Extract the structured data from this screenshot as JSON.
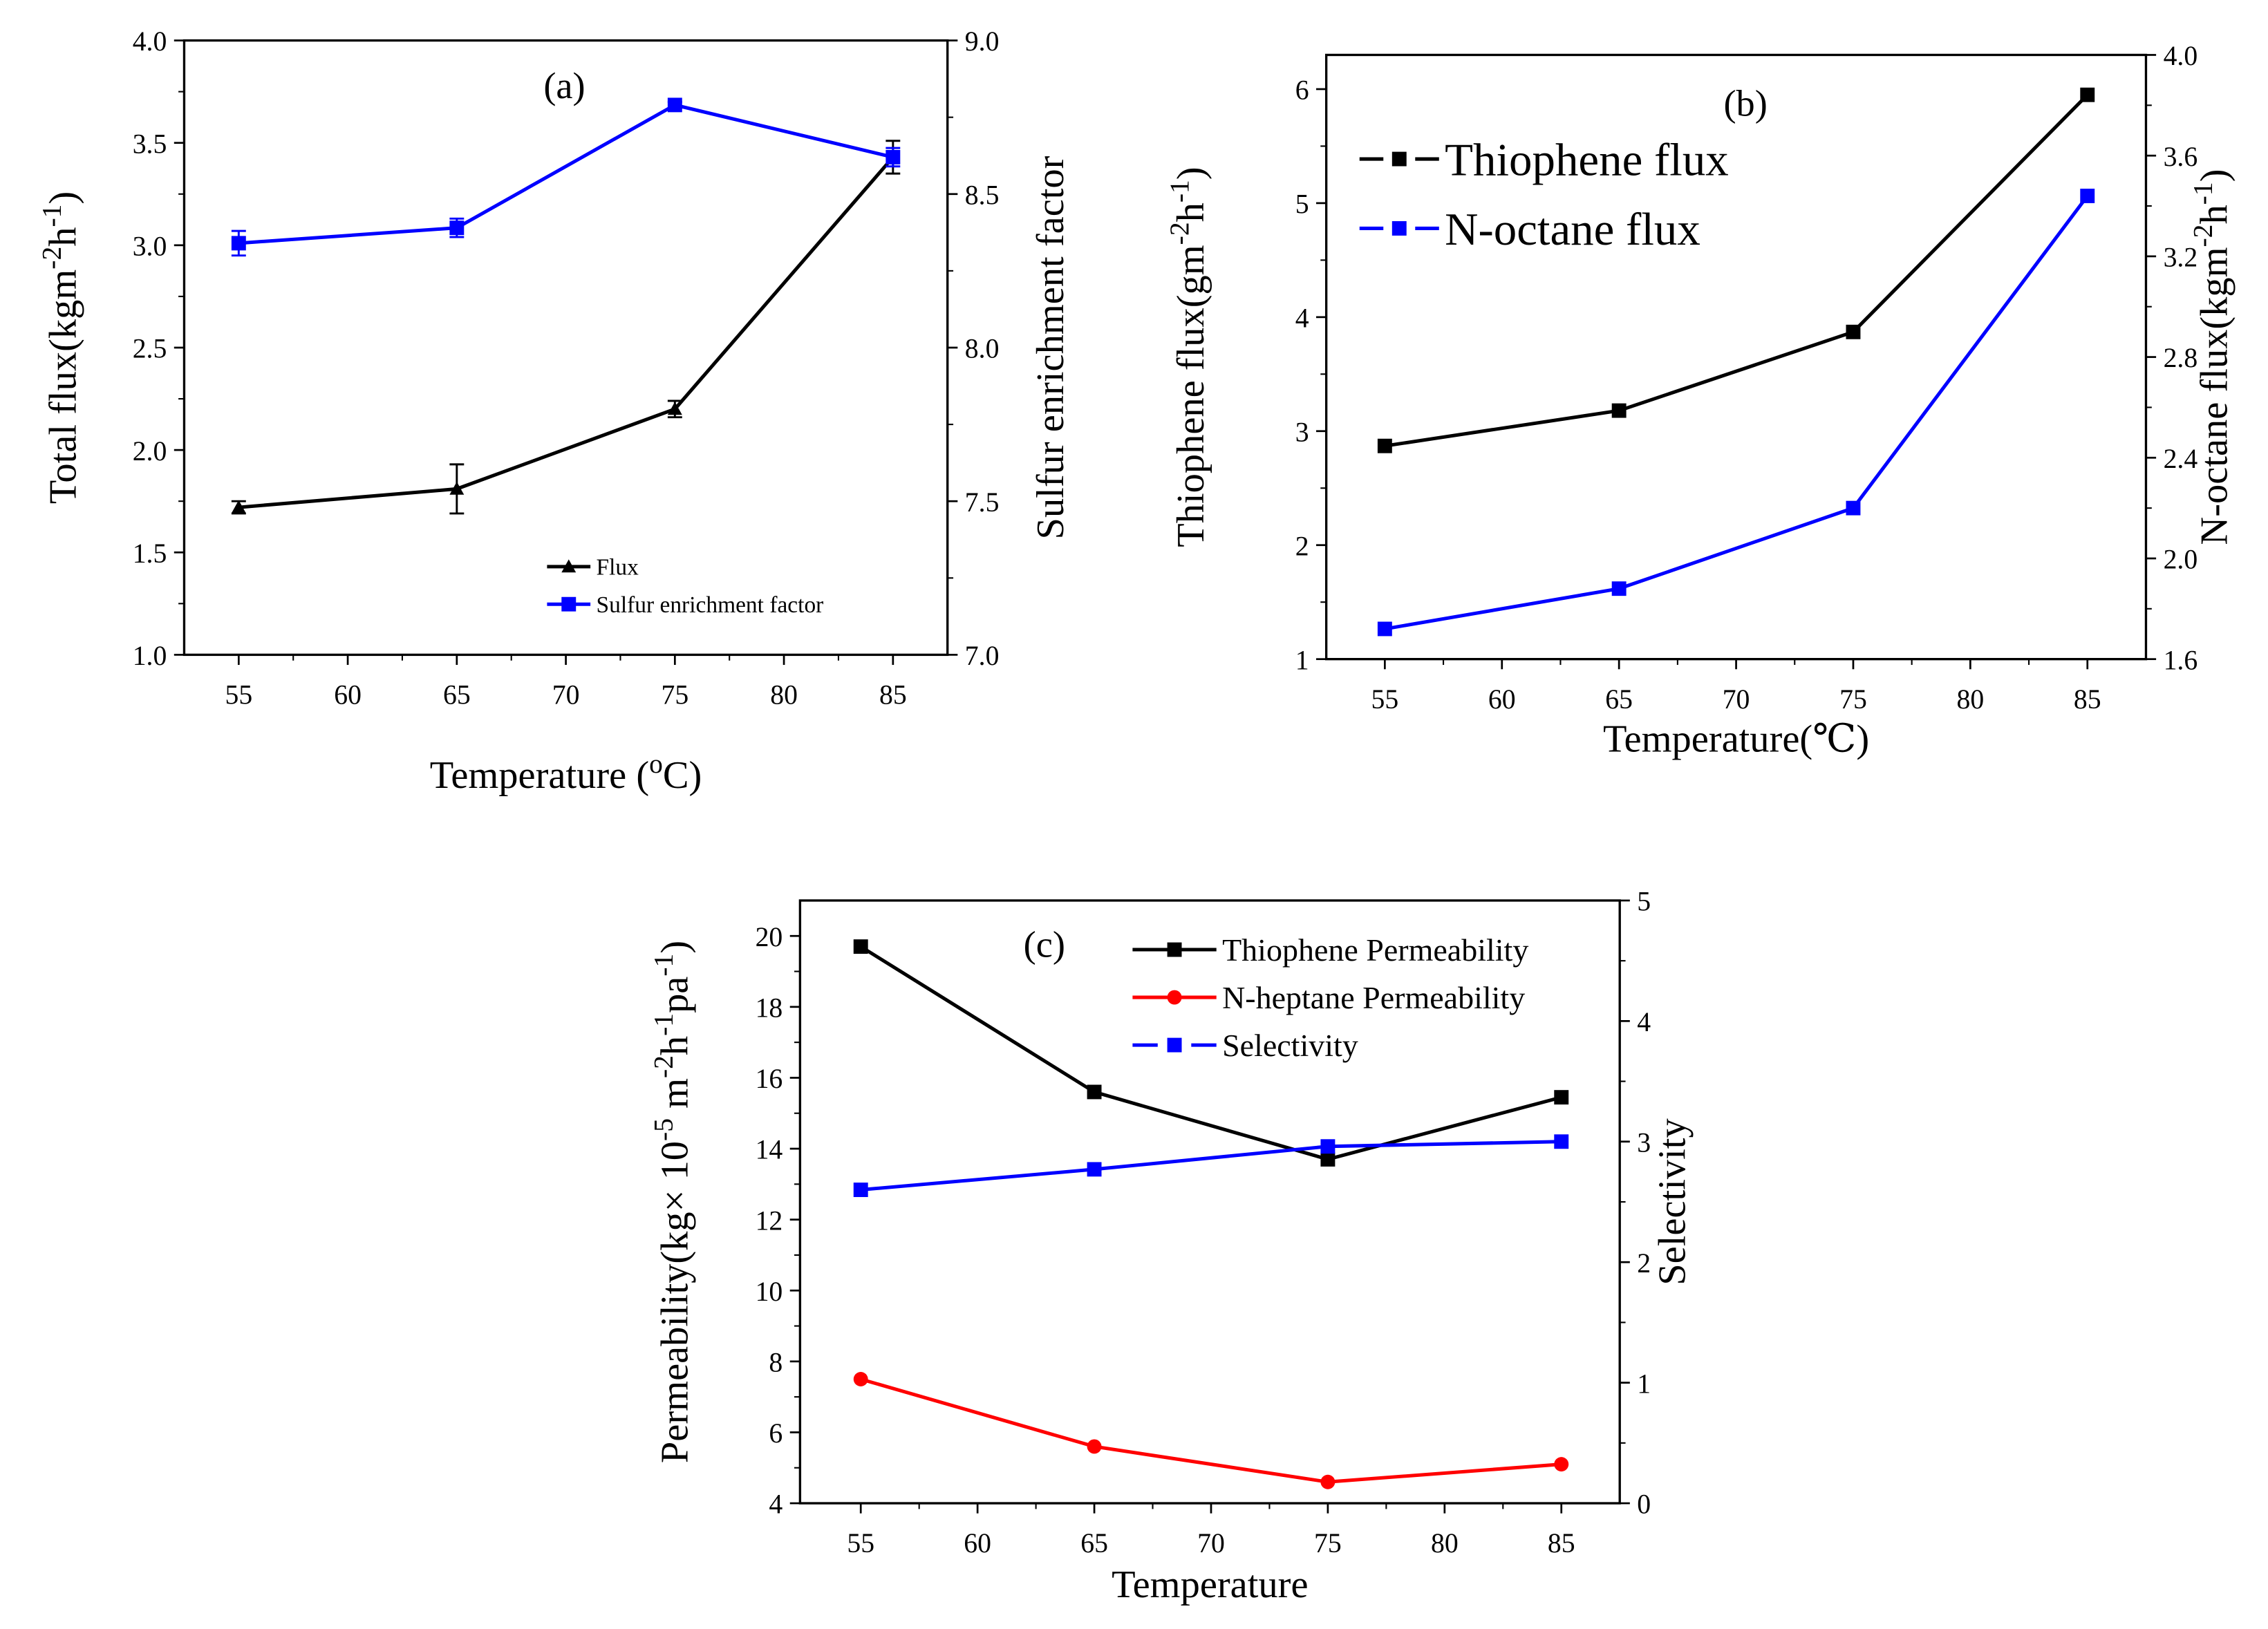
{
  "chart_data": [
    {
      "panel": "(a)",
      "type": "line",
      "xlabel": [
        {
          "t": "Temperature ("
        },
        {
          "t": "o",
          "sup": true
        },
        {
          "t": "C)"
        }
      ],
      "ylabel": [
        {
          "t": "Total flux(kgm"
        },
        {
          "t": "-2",
          "sup": true
        },
        {
          "t": "h"
        },
        {
          "t": "-1",
          "sup": true
        },
        {
          "t": ")"
        }
      ],
      "y2label": [
        {
          "t": "Sulfur enrichment factor"
        }
      ],
      "xlim": [
        52.5,
        87.5
      ],
      "ylim": [
        1.0,
        4.0
      ],
      "y2lim": [
        7.0,
        9.0
      ],
      "xticks": [
        55,
        60,
        65,
        70,
        75,
        80,
        85
      ],
      "yticks": [
        "1.0",
        "1.5",
        "2.0",
        "2.5",
        "3.0",
        "3.5",
        "4.0"
      ],
      "y2ticks": [
        "7.0",
        "7.5",
        "8.0",
        "8.5",
        "9.0"
      ],
      "legend_position": "bottom-center",
      "legend_small": true,
      "series": [
        {
          "name": "Flux",
          "axis": "left",
          "color": "#000000",
          "marker": "triangle",
          "dashed_legend": false,
          "x": [
            55,
            65,
            75,
            85
          ],
          "y": [
            1.72,
            1.81,
            2.2,
            3.43
          ],
          "err": [
            0.03,
            0.12,
            0.04,
            0.08
          ]
        },
        {
          "name": "Sulfur enrichment factor",
          "axis": "right",
          "color": "#0000ff",
          "marker": "square",
          "dashed_legend": false,
          "x": [
            55,
            65,
            75,
            85
          ],
          "y": [
            8.34,
            8.39,
            8.79,
            8.62
          ],
          "err": [
            0.04,
            0.03,
            0.01,
            0.03
          ]
        }
      ]
    },
    {
      "panel": "(b)",
      "type": "line",
      "xlabel": [
        {
          "t": "Temperature(℃)"
        }
      ],
      "ylabel": [
        {
          "t": "Thiophene flux(gm"
        },
        {
          "t": "-2",
          "sup": true
        },
        {
          "t": "h"
        },
        {
          "t": "-1",
          "sup": true
        },
        {
          "t": ")"
        }
      ],
      "y2label": [
        {
          "t": "N-octane flux(kgm"
        },
        {
          "t": "-2",
          "sup": true
        },
        {
          "t": "h"
        },
        {
          "t": "-1",
          "sup": true
        },
        {
          "t": ")"
        }
      ],
      "xlim": [
        52.5,
        87.5
      ],
      "ylim": [
        1.0,
        6.3
      ],
      "y2lim": [
        1.6,
        4.0
      ],
      "xticks": [
        55,
        60,
        65,
        70,
        75,
        80,
        85
      ],
      "yticks": [
        "1",
        "2",
        "3",
        "4",
        "5",
        "6"
      ],
      "y2ticks": [
        "1.6",
        "2.0",
        "2.4",
        "2.8",
        "3.2",
        "3.6",
        "4.0"
      ],
      "legend_position": "top-left",
      "legend_small": false,
      "series": [
        {
          "name": "Thiophene flux",
          "axis": "left",
          "color": "#000000",
          "marker": "square",
          "dashed_legend": true,
          "x": [
            55,
            65,
            75,
            85
          ],
          "y": [
            2.87,
            3.18,
            3.87,
            5.95
          ]
        },
        {
          "name": "N-octane flux",
          "axis": "right",
          "color": "#0000ff",
          "marker": "square",
          "dashed_legend": true,
          "x": [
            55,
            65,
            75,
            85
          ],
          "y": [
            1.72,
            1.88,
            2.2,
            3.44
          ]
        }
      ]
    },
    {
      "panel": "(c)",
      "type": "line",
      "xlabel": [
        {
          "t": "Temperature"
        }
      ],
      "ylabel": [
        {
          "t": "Permeability(kg× 10"
        },
        {
          "t": "-5",
          "sup": true
        },
        {
          "t": " m"
        },
        {
          "t": "-2",
          "sup": true
        },
        {
          "t": "h"
        },
        {
          "t": "-1",
          "sup": true
        },
        {
          "t": "pa"
        },
        {
          "t": "-1",
          "sup": true
        },
        {
          "t": ")"
        }
      ],
      "y2label": [
        {
          "t": "Selectivity"
        }
      ],
      "xlim": [
        52.4,
        87.5
      ],
      "ylim": [
        4,
        21
      ],
      "y2lim": [
        0,
        5
      ],
      "xticks": [
        55,
        60,
        65,
        70,
        75,
        80,
        85
      ],
      "yticks": [
        "4",
        "6",
        "8",
        "10",
        "12",
        "14",
        "16",
        "18",
        "20"
      ],
      "y2ticks": [
        "0",
        "1",
        "2",
        "3",
        "4",
        "5"
      ],
      "legend_position": "top-right",
      "legend_small": false,
      "series": [
        {
          "name": "Thiophene Permeability",
          "axis": "left",
          "color": "#000000",
          "marker": "square",
          "dashed_legend": false,
          "x": [
            55,
            65,
            75,
            85
          ],
          "y": [
            19.7,
            15.6,
            13.7,
            15.45
          ]
        },
        {
          "name": "N-heptane Permeability",
          "axis": "left",
          "color": "#ff0000",
          "marker": "circle",
          "dashed_legend": false,
          "x": [
            55,
            65,
            75,
            85
          ],
          "y": [
            7.5,
            5.6,
            4.6,
            5.1
          ]
        },
        {
          "name": "Selectivity",
          "axis": "right",
          "color": "#0000ff",
          "marker": "square",
          "dashed_legend": true,
          "x": [
            55,
            65,
            75,
            85
          ],
          "y": [
            2.6,
            2.77,
            2.96,
            3.0
          ]
        }
      ]
    }
  ]
}
